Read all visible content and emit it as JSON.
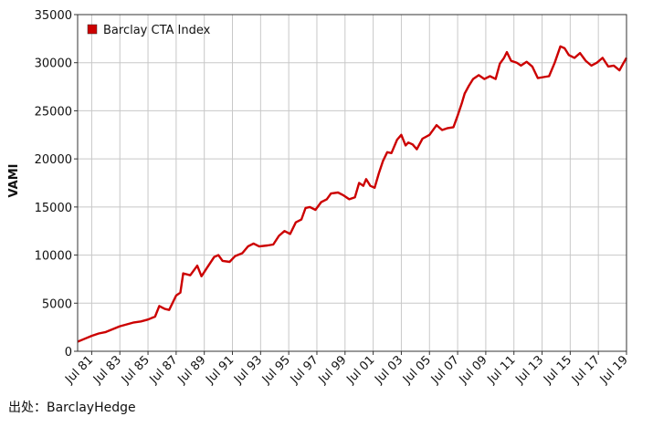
{
  "chart_data": {
    "type": "line",
    "ylabel": "VAMI",
    "xlabel": "",
    "ylim": [
      0,
      35000
    ],
    "yticks": [
      0,
      5000,
      10000,
      15000,
      20000,
      25000,
      30000,
      35000
    ],
    "xlim": [
      1980.5,
      2019.5
    ],
    "xticks": [
      {
        "label": "Jul 81",
        "x": 1981.5
      },
      {
        "label": "Jul 83",
        "x": 1983.5
      },
      {
        "label": "Jul 85",
        "x": 1985.5
      },
      {
        "label": "Jul 87",
        "x": 1987.5
      },
      {
        "label": "Jul 89",
        "x": 1989.5
      },
      {
        "label": "Jul 91",
        "x": 1991.5
      },
      {
        "label": "Jul 93",
        "x": 1993.5
      },
      {
        "label": "Jul 95",
        "x": 1995.5
      },
      {
        "label": "Jul 97",
        "x": 1997.5
      },
      {
        "label": "Jul 99",
        "x": 1999.5
      },
      {
        "label": "Jul 01",
        "x": 2001.5
      },
      {
        "label": "Jul 03",
        "x": 2003.5
      },
      {
        "label": "Jul 05",
        "x": 2005.5
      },
      {
        "label": "Jul 07",
        "x": 2007.5
      },
      {
        "label": "Jul 09",
        "x": 2009.5
      },
      {
        "label": "Jul 11",
        "x": 2011.5
      },
      {
        "label": "Jul 13",
        "x": 2013.5
      },
      {
        "label": "Jul 15",
        "x": 2015.5
      },
      {
        "label": "Jul 17",
        "x": 2017.5
      },
      {
        "label": "Jul 19",
        "x": 2019.5
      }
    ],
    "grid": true,
    "legend_position": "top-left",
    "series": [
      {
        "name": "Barclay CTA Index",
        "color": "#cc0000",
        "points": [
          [
            1980.5,
            1000
          ],
          [
            1981.0,
            1300
          ],
          [
            1981.5,
            1600
          ],
          [
            1982.0,
            1850
          ],
          [
            1982.5,
            2000
          ],
          [
            1983.0,
            2300
          ],
          [
            1983.5,
            2600
          ],
          [
            1984.0,
            2800
          ],
          [
            1984.5,
            3000
          ],
          [
            1985.0,
            3100
          ],
          [
            1985.5,
            3300
          ],
          [
            1986.0,
            3600
          ],
          [
            1986.3,
            4700
          ],
          [
            1986.7,
            4400
          ],
          [
            1987.0,
            4300
          ],
          [
            1987.5,
            5800
          ],
          [
            1987.8,
            6100
          ],
          [
            1988.0,
            8100
          ],
          [
            1988.5,
            7900
          ],
          [
            1989.0,
            8900
          ],
          [
            1989.3,
            7800
          ],
          [
            1989.7,
            8700
          ],
          [
            1990.2,
            9800
          ],
          [
            1990.5,
            10000
          ],
          [
            1990.8,
            9400
          ],
          [
            1991.3,
            9300
          ],
          [
            1991.7,
            9900
          ],
          [
            1992.2,
            10200
          ],
          [
            1992.6,
            10900
          ],
          [
            1993.0,
            11200
          ],
          [
            1993.4,
            10900
          ],
          [
            1994.0,
            11000
          ],
          [
            1994.4,
            11100
          ],
          [
            1994.8,
            12000
          ],
          [
            1995.2,
            12500
          ],
          [
            1995.6,
            12200
          ],
          [
            1996.0,
            13400
          ],
          [
            1996.4,
            13700
          ],
          [
            1996.7,
            14900
          ],
          [
            1997.0,
            15000
          ],
          [
            1997.4,
            14700
          ],
          [
            1997.8,
            15500
          ],
          [
            1998.2,
            15800
          ],
          [
            1998.5,
            16400
          ],
          [
            1999.0,
            16500
          ],
          [
            1999.4,
            16200
          ],
          [
            1999.8,
            15800
          ],
          [
            2000.2,
            16000
          ],
          [
            2000.5,
            17500
          ],
          [
            2000.8,
            17200
          ],
          [
            2001.0,
            17900
          ],
          [
            2001.3,
            17200
          ],
          [
            2001.6,
            17000
          ],
          [
            2001.9,
            18500
          ],
          [
            2002.2,
            19800
          ],
          [
            2002.5,
            20700
          ],
          [
            2002.8,
            20600
          ],
          [
            2003.2,
            22000
          ],
          [
            2003.5,
            22500
          ],
          [
            2003.8,
            21400
          ],
          [
            2004.0,
            21700
          ],
          [
            2004.3,
            21500
          ],
          [
            2004.6,
            21000
          ],
          [
            2005.0,
            22100
          ],
          [
            2005.5,
            22500
          ],
          [
            2006.0,
            23500
          ],
          [
            2006.4,
            23000
          ],
          [
            2006.8,
            23200
          ],
          [
            2007.2,
            23300
          ],
          [
            2007.5,
            24500
          ],
          [
            2007.8,
            25800
          ],
          [
            2008.0,
            26800
          ],
          [
            2008.3,
            27600
          ],
          [
            2008.6,
            28300
          ],
          [
            2009.0,
            28700
          ],
          [
            2009.4,
            28300
          ],
          [
            2009.8,
            28600
          ],
          [
            2010.2,
            28300
          ],
          [
            2010.5,
            29900
          ],
          [
            2010.8,
            30500
          ],
          [
            2011.0,
            31100
          ],
          [
            2011.3,
            30200
          ],
          [
            2011.7,
            30000
          ],
          [
            2012.0,
            29700
          ],
          [
            2012.4,
            30100
          ],
          [
            2012.8,
            29600
          ],
          [
            2013.2,
            28400
          ],
          [
            2013.6,
            28500
          ],
          [
            2014.0,
            28600
          ],
          [
            2014.4,
            30000
          ],
          [
            2014.8,
            31700
          ],
          [
            2015.1,
            31500
          ],
          [
            2015.4,
            30800
          ],
          [
            2015.8,
            30500
          ],
          [
            2016.2,
            31000
          ],
          [
            2016.6,
            30200
          ],
          [
            2017.0,
            29700
          ],
          [
            2017.4,
            30000
          ],
          [
            2017.8,
            30500
          ],
          [
            2018.2,
            29600
          ],
          [
            2018.6,
            29700
          ],
          [
            2019.0,
            29200
          ],
          [
            2019.3,
            30000
          ],
          [
            2019.5,
            30500
          ]
        ]
      }
    ]
  },
  "source_text": "出处：BarclayHedge"
}
